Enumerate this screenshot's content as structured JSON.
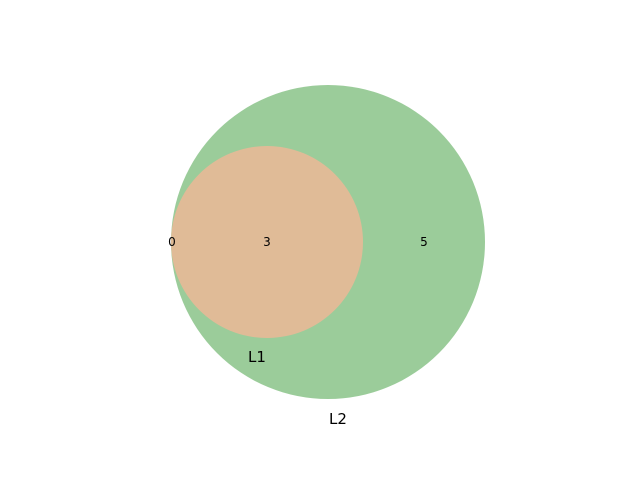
{
  "diagram": {
    "type": "venn2",
    "sets": [
      {
        "name": "L1",
        "color": "#e0bb97"
      },
      {
        "name": "L2",
        "color": "#9bcc9a"
      }
    ],
    "regions": {
      "only_L1": "0",
      "both": "3",
      "only_L2": "5"
    }
  }
}
